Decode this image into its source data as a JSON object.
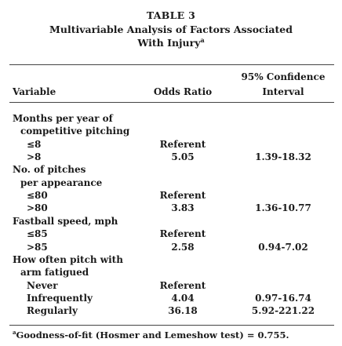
{
  "table": {
    "title": "TABLE 3",
    "subtitle_line1": "Multivariable Analysis of Factors Associated",
    "subtitle_line2": "With Injury",
    "subtitle_footnote_mark": "a",
    "headers": {
      "variable": "Variable",
      "odds_ratio": "Odds Ratio",
      "ci_line1": "95% Confidence",
      "ci_line2": "Interval"
    },
    "rows": [
      {
        "label": "Months per year of",
        "or": "",
        "ci": ""
      },
      {
        "label": "competitive pitching",
        "or": "",
        "ci": ""
      },
      {
        "label": "≤8",
        "or": "Referent",
        "ci": ""
      },
      {
        "label": ">8",
        "or": "5.05",
        "ci": "1.39-18.32"
      },
      {
        "label": "No. of pitches",
        "or": "",
        "ci": ""
      },
      {
        "label": "per appearance",
        "or": "",
        "ci": ""
      },
      {
        "label": "≤80",
        "or": "Referent",
        "ci": ""
      },
      {
        "label": ">80",
        "or": "3.83",
        "ci": "1.36-10.77"
      },
      {
        "label": "Fastball speed, mph",
        "or": "",
        "ci": ""
      },
      {
        "label": "≤85",
        "or": "Referent",
        "ci": ""
      },
      {
        "label": ">85",
        "or": "2.58",
        "ci": "0.94-7.02"
      },
      {
        "label": "How often pitch with",
        "or": "",
        "ci": ""
      },
      {
        "label": "arm fatigued",
        "or": "",
        "ci": ""
      },
      {
        "label": "Never",
        "or": "Referent",
        "ci": ""
      },
      {
        "label": "Infrequently",
        "or": "4.04",
        "ci": "0.97-16.74"
      },
      {
        "label": "Regularly",
        "or": "36.18",
        "ci": "5.92-221.22"
      }
    ],
    "footnote_mark": "a",
    "footnote": "Goodness-of-fit (Hosmer and Lemeshow test) = 0.755."
  }
}
